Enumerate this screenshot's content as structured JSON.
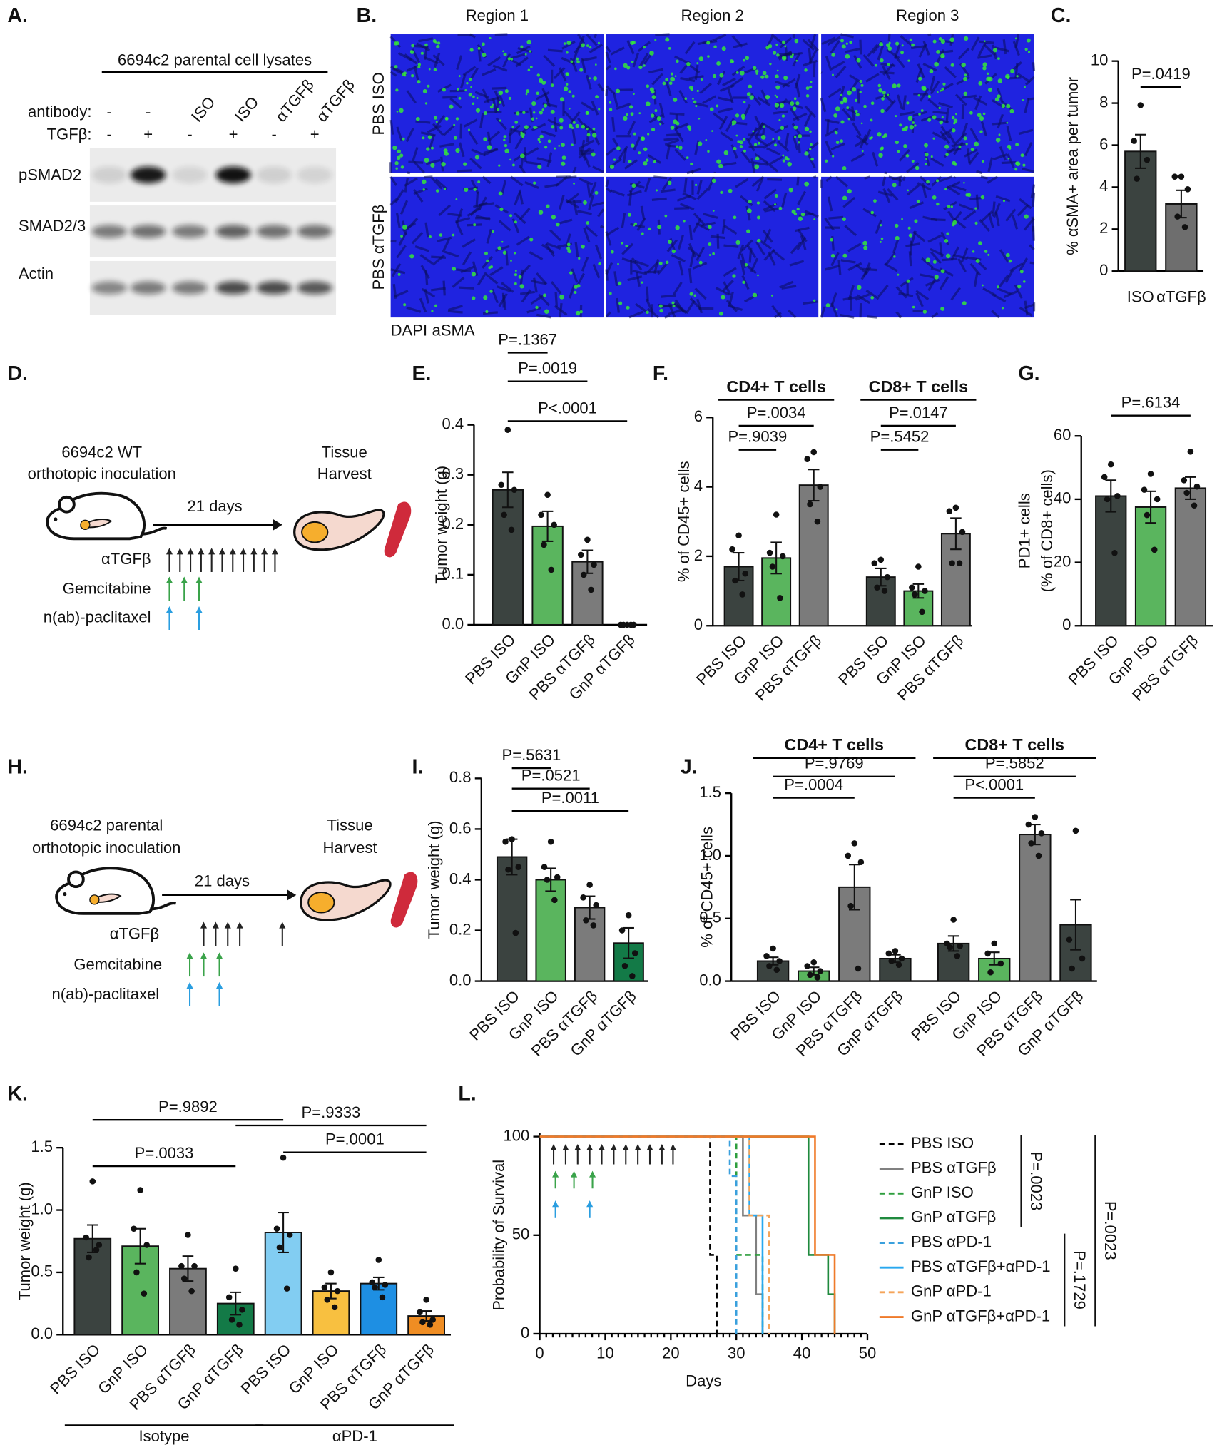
{
  "blot": {
    "label": "A.",
    "title": "6694c2 parental cell lysates",
    "conditions": [
      {
        "name": "antibody:",
        "lanes": [
          "-",
          "-",
          "ISO",
          "ISO",
          "αTGFβ",
          "αTGFβ"
        ]
      },
      {
        "name": "TGFβ:",
        "lanes": [
          "-",
          "+",
          "-",
          "+",
          "-",
          "+"
        ]
      }
    ],
    "rows": [
      "pSMAD2",
      "SMAD2/3",
      "Actin"
    ]
  },
  "microscopy": {
    "label": "B.",
    "columns": [
      "Region 1",
      "Region 2",
      "Region 3"
    ],
    "rows": [
      "PBS ISO",
      "PBS αTGFβ"
    ],
    "channels": [
      {
        "name": "DAPI",
        "color": "#1f23e0"
      },
      {
        "name": "aSMA",
        "color": "#35e63a"
      }
    ]
  },
  "schematics": [
    {
      "label": "D.",
      "title": [
        "6694c2 WT",
        "orthotopic inoculation"
      ],
      "duration": "21 days",
      "endpoint": [
        "Tissue",
        "Harvest"
      ],
      "treatments": [
        "αTGFβ",
        "Gemcitabine",
        "n(ab)-paclitaxel"
      ]
    },
    {
      "label": "H.",
      "title": [
        "6694c2 parental",
        "orthotopic inoculation"
      ],
      "duration": "21 days",
      "endpoint": [
        "Tissue",
        "Harvest"
      ],
      "treatments": [
        "αTGFβ",
        "Gemcitabine",
        "n(ab)-paclitaxel"
      ]
    }
  ],
  "chart_data": [
    {
      "type": "bar",
      "label": "C.",
      "ylabel": [
        "% αSMA+ area per tumor"
      ],
      "ylim": [
        0,
        10
      ],
      "yticks": [
        0,
        2,
        4,
        6,
        8,
        10
      ],
      "groups": [
        {
          "categories": [
            "ISO",
            "αTGFβ"
          ],
          "values": [
            5.7,
            3.2
          ],
          "errors": [
            0.8,
            0.65
          ],
          "colors": [
            "#3b4340",
            "#6e6e6e"
          ],
          "points": [
            [
              7.9,
              6.2,
              5.3,
              4.4
            ],
            [
              4.5,
              4.5,
              3.9,
              2.6,
              2.1
            ]
          ]
        }
      ],
      "comparisons": [
        {
          "label": "P=.0419",
          "bars": [
            0,
            1
          ]
        }
      ]
    },
    {
      "type": "bar",
      "label": "E.",
      "ylabel": [
        "Tumor weight (g)"
      ],
      "ylim": [
        0,
        0.4
      ],
      "yticks": [
        {
          "value": 0,
          "label": "0.0"
        },
        0.1,
        0.2,
        0.3,
        0.4
      ],
      "groups": [
        {
          "categories": [
            "PBS ISO",
            "GnP ISO",
            "PBS αTGFβ",
            "GnP αTGFβ"
          ],
          "values": [
            0.27,
            0.197,
            0.126,
            0
          ],
          "errors": [
            0.035,
            0.03,
            0.023,
            0
          ],
          "colors": [
            "#3b4340",
            "#5ab55e",
            "#7b7b7b",
            "#137a47"
          ],
          "points": [
            [
              0.39,
              0.28,
              0.27,
              0.22,
              0.19
            ],
            [
              0.26,
              0.22,
              0.2,
              0.16,
              0.11
            ],
            [
              0.17,
              0.14,
              0.12,
              0.1,
              0.07
            ],
            [
              0,
              0,
              0,
              0,
              0
            ]
          ]
        }
      ],
      "comparisons": [
        {
          "label": "P=.1367",
          "bars": [
            0,
            1
          ]
        },
        {
          "label": "P=.0019",
          "bars": [
            0,
            2
          ]
        },
        {
          "label": "P<.0001",
          "bars": [
            0,
            3
          ]
        }
      ]
    },
    {
      "type": "bar",
      "label": "F.",
      "ylabel": [
        "% of CD45+ cells"
      ],
      "ylim": [
        0,
        6
      ],
      "yticks": [
        0,
        2,
        4,
        6
      ],
      "group_label_position": "top",
      "groups": [
        {
          "name": "CD4+ T cells",
          "categories": [
            "PBS ISO",
            "GnP ISO",
            "PBS αTGFβ"
          ],
          "values": [
            1.7,
            1.95,
            4.05
          ],
          "errors": [
            0.4,
            0.45,
            0.45
          ],
          "colors": [
            "#3b4340",
            "#5ab55e",
            "#7b7b7b"
          ],
          "points": [
            [
              2.6,
              2.2,
              1.5,
              1.3,
              0.9
            ],
            [
              3.2,
              2.1,
              2.0,
              1.7,
              0.8
            ],
            [
              5.0,
              4.8,
              4.0,
              3.5,
              3.0
            ]
          ]
        },
        {
          "name": "CD8+ T cells",
          "categories": [
            "PBS ISO",
            "GnP ISO",
            "PBS αTGFβ"
          ],
          "values": [
            1.4,
            1.0,
            2.65
          ],
          "errors": [
            0.25,
            0.2,
            0.45
          ],
          "colors": [
            "#3b4340",
            "#5ab55e",
            "#7b7b7b"
          ],
          "points": [
            [
              1.9,
              1.8,
              1.4,
              1.1,
              1.0
            ],
            [
              1.7,
              1.1,
              1.0,
              0.9,
              0.4
            ],
            [
              3.4,
              3.3,
              2.7,
              1.8,
              1.8
            ]
          ]
        }
      ],
      "comparisons": [
        {
          "label": "P=.0034",
          "bars": [
            0,
            2
          ]
        },
        {
          "label": "P=.9039",
          "bars": [
            0,
            1
          ]
        },
        {
          "label": "P=.0147",
          "bars": [
            3,
            5
          ]
        },
        {
          "label": "P=.5452",
          "bars": [
            3,
            4
          ]
        }
      ]
    },
    {
      "type": "bar",
      "label": "G.",
      "ylabel": [
        "PD1+ cells",
        "(% of CD8+ cells)"
      ],
      "ylim": [
        0,
        60
      ],
      "yticks": [
        0,
        20,
        40,
        60
      ],
      "groups": [
        {
          "categories": [
            "PBS ISO",
            "GnP ISO",
            "PBS αTGFβ"
          ],
          "values": [
            41,
            37.5,
            43.5
          ],
          "errors": [
            5,
            5,
            3.5
          ],
          "colors": [
            "#3b4340",
            "#5ab55e",
            "#7b7b7b"
          ],
          "points": [
            [
              51,
              47,
              41,
              40,
              23
            ],
            [
              48,
              43,
              40,
              35,
              24
            ],
            [
              55,
              46,
              44,
              42,
              38
            ]
          ]
        }
      ],
      "comparisons": [
        {
          "label": "P=.6134",
          "bars": [
            0,
            2
          ]
        }
      ]
    },
    {
      "type": "bar",
      "label": "I.",
      "ylabel": [
        "Tumor weight (g)"
      ],
      "ylim": [
        0,
        0.8
      ],
      "yticks": [
        {
          "value": 0,
          "label": "0.0"
        },
        0.2,
        0.4,
        0.6,
        0.8
      ],
      "groups": [
        {
          "categories": [
            "PBS ISO",
            "GnP ISO",
            "PBS αTGFβ",
            "GnP αTGFβ"
          ],
          "values": [
            0.49,
            0.4,
            0.29,
            0.15
          ],
          "errors": [
            0.07,
            0.045,
            0.045,
            0.06
          ],
          "colors": [
            "#3b4340",
            "#5ab55e",
            "#7b7b7b",
            "#137a47"
          ],
          "points": [
            [
              0.56,
              0.55,
              0.45,
              0.44,
              0.19
            ],
            [
              0.55,
              0.45,
              0.41,
              0.4,
              0.32
            ],
            [
              0.38,
              0.33,
              0.3,
              0.24,
              0.22
            ],
            [
              0.26,
              0.2,
              0.11,
              0.06,
              0.02
            ]
          ]
        }
      ],
      "comparisons": [
        {
          "label": "P=.5631",
          "bars": [
            0,
            1
          ]
        },
        {
          "label": "P=.0521",
          "bars": [
            0,
            2
          ]
        },
        {
          "label": "P=.0011",
          "bars": [
            0,
            3
          ]
        }
      ]
    },
    {
      "type": "bar",
      "label": "J.",
      "ylabel": [
        "% of CD45+ cells"
      ],
      "ylim": [
        0,
        1.5
      ],
      "yticks": [
        {
          "value": 0,
          "label": "0.0"
        },
        0.5,
        {
          "value": 1,
          "label": "1.0"
        },
        1.5
      ],
      "group_label_position": "top",
      "groups": [
        {
          "name": "CD4+ T cells",
          "categories": [
            "PBS ISO",
            "GnP ISO",
            "PBS αTGFβ",
            "GnP αTGFβ"
          ],
          "values": [
            0.16,
            0.08,
            0.75,
            0.18
          ],
          "errors": [
            0.03,
            0.03,
            0.18,
            0.03
          ],
          "colors": [
            "#3b4340",
            "#5ab55e",
            "#7b7b7b",
            "#3b4340"
          ],
          "points": [
            [
              0.26,
              0.2,
              0.16,
              0.12,
              0.09
            ],
            [
              0.15,
              0.12,
              0.08,
              0.05,
              0.03
            ],
            [
              1.1,
              1.0,
              0.95,
              0.6,
              0.1
            ],
            [
              0.24,
              0.22,
              0.18,
              0.16,
              0.13
            ]
          ]
        },
        {
          "name": "CD8+ T cells",
          "categories": [
            "PBS ISO",
            "GnP ISO",
            "PBS αTGFβ",
            "GnP αTGFβ"
          ],
          "values": [
            0.3,
            0.18,
            1.17,
            0.45
          ],
          "errors": [
            0.06,
            0.05,
            0.08,
            0.2
          ],
          "colors": [
            "#3b4340",
            "#5ab55e",
            "#7b7b7b",
            "#3b4340"
          ],
          "points": [
            [
              0.49,
              0.3,
              0.28,
              0.27,
              0.2
            ],
            [
              0.3,
              0.22,
              0.14,
              0.07
            ],
            [
              1.31,
              1.25,
              1.18,
              1.1,
              1.0
            ],
            [
              1.2,
              0.33,
              0.18,
              0.1
            ]
          ]
        }
      ],
      "comparisons": [
        {
          "label": "P=.9769",
          "bars": [
            0,
            3
          ]
        },
        {
          "label": "P=.0004",
          "bars": [
            0,
            2
          ]
        },
        {
          "label": "P=.5852",
          "bars": [
            4,
            7
          ]
        },
        {
          "label": "P<.0001",
          "bars": [
            4,
            6
          ]
        }
      ]
    },
    {
      "type": "bar",
      "label": "K.",
      "ylabel": [
        "Tumor weight (g)"
      ],
      "ylim": [
        0,
        1.5
      ],
      "yticks": [
        {
          "value": 0,
          "label": "0.0"
        },
        0.5,
        {
          "value": 1,
          "label": "1.0"
        },
        1.5
      ],
      "group_label_position": "bottom",
      "groups": [
        {
          "name": "Isotype",
          "categories": [
            "PBS ISO",
            "GnP ISO",
            "PBS αTGFβ",
            "GnP αTGFβ"
          ],
          "values": [
            0.77,
            0.71,
            0.53,
            0.25
          ],
          "errors": [
            0.11,
            0.14,
            0.1,
            0.09
          ],
          "colors": [
            "#3b4340",
            "#5ab55e",
            "#7b7b7b",
            "#137a47"
          ],
          "points": [
            [
              1.23,
              0.78,
              0.72,
              0.62,
              0.68
            ],
            [
              1.16,
              0.85,
              0.72,
              0.5,
              0.33
            ],
            [
              0.8,
              0.55,
              0.55,
              0.45,
              0.35
            ],
            [
              0.53,
              0.3,
              0.2,
              0.12,
              0.08
            ]
          ]
        },
        {
          "name": "αPD-1",
          "categories": [
            "PBS ISO",
            "GnP ISO",
            "PBS αTGFβ",
            "GnP αTGFβ"
          ],
          "values": [
            0.82,
            0.35,
            0.41,
            0.15
          ],
          "errors": [
            0.16,
            0.06,
            0.05,
            0.04
          ],
          "colors": [
            "#82cdf2",
            "#f8c040",
            "#1e8fe3",
            "#ef8d23"
          ],
          "points": [
            [
              1.42,
              0.85,
              0.8,
              0.7,
              0.37
            ],
            [
              0.5,
              0.38,
              0.35,
              0.28,
              0.22
            ],
            [
              0.6,
              0.42,
              0.4,
              0.38,
              0.3
            ],
            [
              0.28,
              0.18,
              0.12,
              0.1,
              0.08
            ]
          ]
        }
      ],
      "comparisons": [
        {
          "label": "P=.9892",
          "bars": [
            0,
            4
          ]
        },
        {
          "label": "P=.9333",
          "bars": [
            3,
            7
          ]
        },
        {
          "label": "P=.0001",
          "bars": [
            4,
            7
          ]
        },
        {
          "label": "P=.0033",
          "bars": [
            0,
            3
          ]
        }
      ]
    },
    {
      "type": "survival",
      "label": "L.",
      "xlabel": "Days",
      "ylabel": "Probability of Survival",
      "xlim": [
        0,
        50
      ],
      "xticks": [
        0,
        10,
        20,
        30,
        40,
        50
      ],
      "ylim": [
        0,
        100
      ],
      "yticks": [
        0,
        50,
        100
      ],
      "series": [
        {
          "name": "PBS ISO",
          "color": "#000000",
          "line_style": "dashed",
          "x": [
            0,
            26,
            27
          ],
          "y": [
            100,
            40,
            0
          ]
        },
        {
          "name": "PBS αTGFβ",
          "color": "#808080",
          "line_style": "solid",
          "x": [
            0,
            31,
            33,
            34
          ],
          "y": [
            100,
            60,
            20,
            0
          ]
        },
        {
          "name": "GnP ISO",
          "color": "#2e9e3e",
          "line_style": "dashed",
          "x": [
            0,
            30,
            34
          ],
          "y": [
            100,
            40,
            0
          ]
        },
        {
          "name": "GnP αTGFβ",
          "color": "#1f8a3e",
          "line_style": "solid",
          "x": [
            0,
            41,
            44,
            45
          ],
          "y": [
            100,
            40,
            20,
            0
          ]
        },
        {
          "name": "PBS αPD-1",
          "color": "#3aa0dd",
          "line_style": "dashed",
          "x": [
            0,
            29,
            30
          ],
          "y": [
            100,
            80,
            0
          ]
        },
        {
          "name": "PBS αTGFβ+αPD-1",
          "color": "#28a8ef",
          "line_style": "solid",
          "x": [
            0,
            32,
            34
          ],
          "y": [
            100,
            60,
            0
          ]
        },
        {
          "name": "GnP αPD-1",
          "color": "#f5a55a",
          "line_style": "dashed",
          "x": [
            0,
            32,
            35
          ],
          "y": [
            100,
            60,
            0
          ]
        },
        {
          "name": "GnP αTGFβ+αPD-1",
          "color": "#ef7a2a",
          "line_style": "solid",
          "x": [
            0,
            42,
            45
          ],
          "y": [
            100,
            40,
            0
          ]
        }
      ],
      "comparisons": [
        {
          "label": "P=.0023"
        },
        {
          "label": "P=.0023"
        },
        {
          "label": "P=.1729"
        }
      ]
    }
  ]
}
